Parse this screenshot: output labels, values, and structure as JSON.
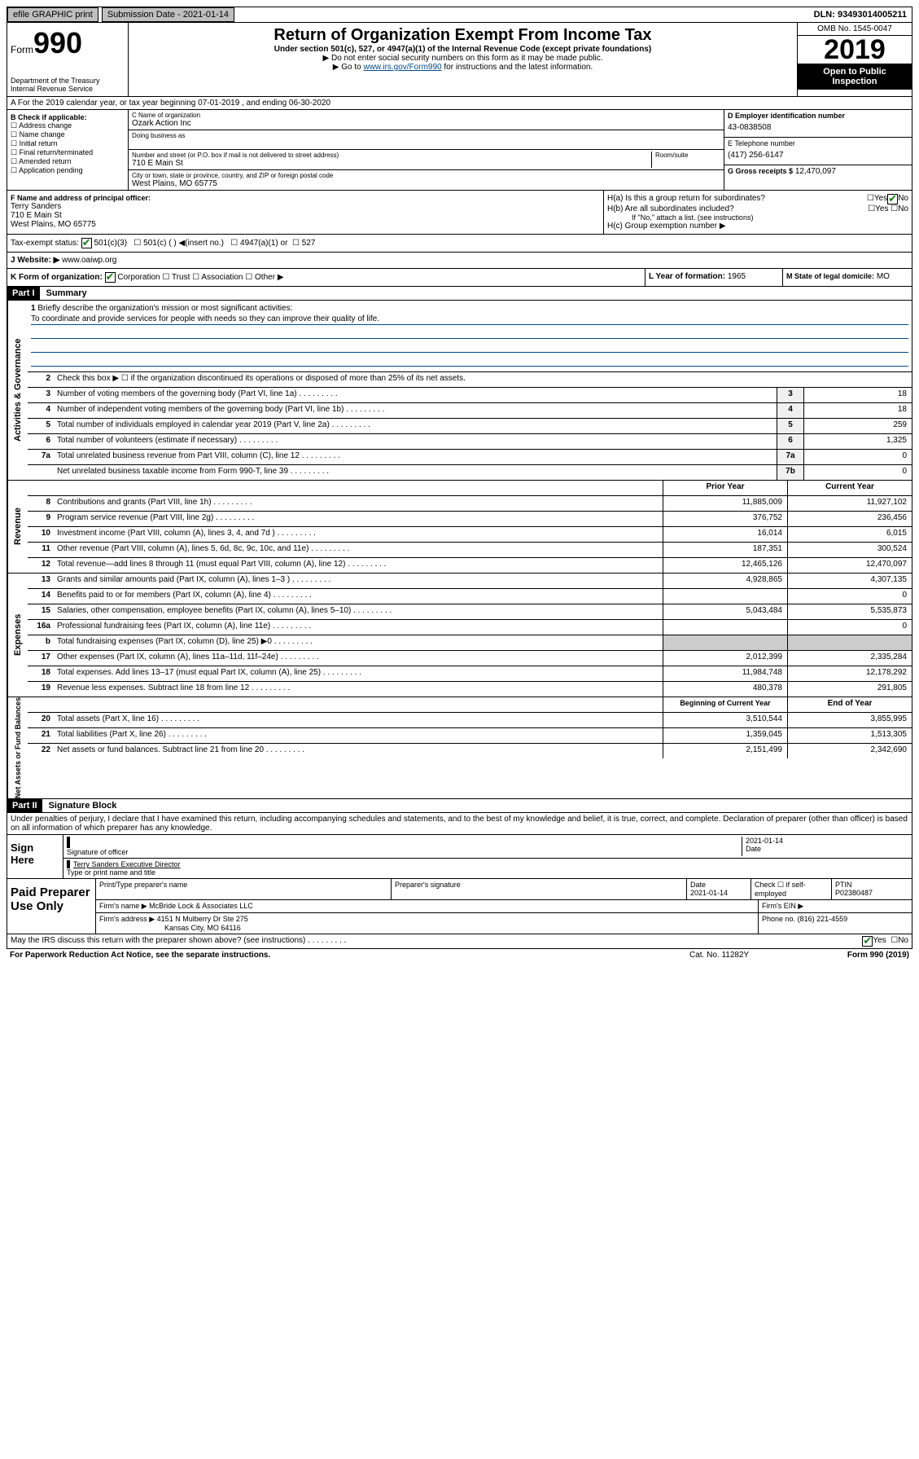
{
  "topbar": {
    "efile": "efile GRAPHIC print",
    "submission": "Submission Date - 2021-01-14",
    "dln": "DLN: 93493014005211"
  },
  "header": {
    "form_label": "Form",
    "form_num": "990",
    "dept": "Department of the Treasury\nInternal Revenue Service",
    "title": "Return of Organization Exempt From Income Tax",
    "sub1": "Under section 501(c), 527, or 4947(a)(1) of the Internal Revenue Code (except private foundations)",
    "sub2": "▶ Do not enter social security numbers on this form as it may be made public.",
    "sub3_pre": "▶ Go to ",
    "sub3_link": "www.irs.gov/Form990",
    "sub3_post": " for instructions and the latest information.",
    "omb": "OMB No. 1545-0047",
    "year": "2019",
    "open": "Open to Public Inspection"
  },
  "sectionA": "A For the 2019 calendar year, or tax year beginning 07-01-2019   , and ending 06-30-2020",
  "B": {
    "label": "B Check if applicable:",
    "items": [
      "Address change",
      "Name change",
      "Initial return",
      "Final return/terminated",
      "Amended return",
      "Application pending"
    ]
  },
  "C": {
    "name_label": "C Name of organization",
    "name": "Ozark Action Inc",
    "dba_label": "Doing business as",
    "addr_label": "Number and street (or P.O. box if mail is not delivered to street address)",
    "room_label": "Room/suite",
    "addr": "710 E Main St",
    "city_label": "City or town, state or province, country, and ZIP or foreign postal code",
    "city": "West Plains, MO  65775"
  },
  "D": {
    "label": "D Employer identification number",
    "value": "43-0838508"
  },
  "E": {
    "label": "E Telephone number",
    "value": "(417) 256-6147"
  },
  "G": {
    "label": "G Gross receipts $",
    "value": "12,470,097"
  },
  "F": {
    "label": "F  Name and address of principal officer:",
    "name": "Terry Sanders",
    "addr1": "710 E Main St",
    "addr2": "West Plains, MO  65775"
  },
  "H": {
    "a": "H(a)  Is this a group return for subordinates?",
    "b": "H(b)  Are all subordinates included?",
    "b_note": "If \"No,\" attach a list. (see instructions)",
    "c": "H(c)  Group exemption number ▶"
  },
  "I": {
    "label": "Tax-exempt status:",
    "opts": [
      "501(c)(3)",
      "501(c) (  ) ◀(insert no.)",
      "4947(a)(1) or",
      "527"
    ]
  },
  "J": {
    "label": "J  Website: ▶",
    "value": "www.oaiwp.org"
  },
  "K": {
    "label": "K Form of organization:",
    "opts": [
      "Corporation",
      "Trust",
      "Association",
      "Other ▶"
    ]
  },
  "L": {
    "label": "L Year of formation:",
    "value": "1965"
  },
  "M": {
    "label": "M State of legal domicile:",
    "value": "MO"
  },
  "part1": {
    "hdr": "Part I",
    "title": "Summary",
    "l1": "Briefly describe the organization's mission or most significant activities:",
    "mission": "To coordinate and provide services for people with needs so they can improve their quality of life.",
    "l2": "Check this box ▶ ☐  if the organization discontinued its operations or disposed of more than 25% of its net assets.",
    "lines_gov": [
      {
        "n": "3",
        "t": "Number of voting members of the governing body (Part VI, line 1a)",
        "b": "3",
        "v": "18"
      },
      {
        "n": "4",
        "t": "Number of independent voting members of the governing body (Part VI, line 1b)",
        "b": "4",
        "v": "18"
      },
      {
        "n": "5",
        "t": "Total number of individuals employed in calendar year 2019 (Part V, line 2a)",
        "b": "5",
        "v": "259"
      },
      {
        "n": "6",
        "t": "Total number of volunteers (estimate if necessary)",
        "b": "6",
        "v": "1,325"
      },
      {
        "n": "7a",
        "t": "Total unrelated business revenue from Part VIII, column (C), line 12",
        "b": "7a",
        "v": "0"
      },
      {
        "n": "",
        "t": "Net unrelated business taxable income from Form 990-T, line 39",
        "b": "7b",
        "v": "0"
      }
    ],
    "col_prior": "Prior Year",
    "col_current": "Current Year",
    "lines_rev": [
      {
        "n": "8",
        "t": "Contributions and grants (Part VIII, line 1h)",
        "p": "11,885,009",
        "c": "11,927,102"
      },
      {
        "n": "9",
        "t": "Program service revenue (Part VIII, line 2g)",
        "p": "376,752",
        "c": "236,456"
      },
      {
        "n": "10",
        "t": "Investment income (Part VIII, column (A), lines 3, 4, and 7d )",
        "p": "16,014",
        "c": "6,015"
      },
      {
        "n": "11",
        "t": "Other revenue (Part VIII, column (A), lines 5, 6d, 8c, 9c, 10c, and 11e)",
        "p": "187,351",
        "c": "300,524"
      },
      {
        "n": "12",
        "t": "Total revenue—add lines 8 through 11 (must equal Part VIII, column (A), line 12)",
        "p": "12,465,126",
        "c": "12,470,097"
      }
    ],
    "lines_exp": [
      {
        "n": "13",
        "t": "Grants and similar amounts paid (Part IX, column (A), lines 1–3 )",
        "p": "4,928,865",
        "c": "4,307,135"
      },
      {
        "n": "14",
        "t": "Benefits paid to or for members (Part IX, column (A), line 4)",
        "p": "",
        "c": "0"
      },
      {
        "n": "15",
        "t": "Salaries, other compensation, employee benefits (Part IX, column (A), lines 5–10)",
        "p": "5,043,484",
        "c": "5,535,873"
      },
      {
        "n": "16a",
        "t": "Professional fundraising fees (Part IX, column (A), line 11e)",
        "p": "",
        "c": "0"
      },
      {
        "n": "b",
        "t": "Total fundraising expenses (Part IX, column (D), line 25) ▶0",
        "p": "",
        "c": "",
        "shaded": true
      },
      {
        "n": "17",
        "t": "Other expenses (Part IX, column (A), lines 11a–11d, 11f–24e)",
        "p": "2,012,399",
        "c": "2,335,284"
      },
      {
        "n": "18",
        "t": "Total expenses. Add lines 13–17 (must equal Part IX, column (A), line 25)",
        "p": "11,984,748",
        "c": "12,178,292"
      },
      {
        "n": "19",
        "t": "Revenue less expenses. Subtract line 18 from line 12",
        "p": "480,378",
        "c": "291,805"
      }
    ],
    "col_begin": "Beginning of Current Year",
    "col_end": "End of Year",
    "lines_net": [
      {
        "n": "20",
        "t": "Total assets (Part X, line 16)",
        "p": "3,510,544",
        "c": "3,855,995"
      },
      {
        "n": "21",
        "t": "Total liabilities (Part X, line 26)",
        "p": "1,359,045",
        "c": "1,513,305"
      },
      {
        "n": "22",
        "t": "Net assets or fund balances. Subtract line 21 from line 20",
        "p": "2,151,499",
        "c": "2,342,690"
      }
    ]
  },
  "part2": {
    "hdr": "Part II",
    "title": "Signature Block",
    "perjury": "Under penalties of perjury, I declare that I have examined this return, including accompanying schedules and statements, and to the best of my knowledge and belief, it is true, correct, and complete. Declaration of preparer (other than officer) is based on all information of which preparer has any knowledge.",
    "sign_here": "Sign Here",
    "sig_officer": "Signature of officer",
    "date": "2021-01-14",
    "date_label": "Date",
    "name_title": "Terry Sanders  Executive Director",
    "name_title_label": "Type or print name and title",
    "paid": "Paid Preparer Use Only",
    "prep_name_label": "Print/Type preparer's name",
    "prep_sig_label": "Preparer's signature",
    "prep_date": "2021-01-14",
    "prep_date_label": "Date",
    "self_emp": "Check ☐ if self-employed",
    "ptin_label": "PTIN",
    "ptin": "P02380487",
    "firm_name_label": "Firm's name    ▶",
    "firm_name": "McBride Lock & Associates LLC",
    "firm_ein_label": "Firm's EIN ▶",
    "firm_addr_label": "Firm's address ▶",
    "firm_addr": "4151 N Mulberry Dr Ste 275",
    "firm_city": "Kansas City, MO  64116",
    "phone_label": "Phone no.",
    "phone": "(816) 221-4559"
  },
  "footer": {
    "discuss": "May the IRS discuss this return with the preparer shown above? (see instructions)",
    "yes": "Yes",
    "no": "No",
    "paperwork": "For Paperwork Reduction Act Notice, see the separate instructions.",
    "cat": "Cat. No. 11282Y",
    "form": "Form 990 (2019)"
  },
  "side_labels": {
    "gov": "Activities & Governance",
    "rev": "Revenue",
    "exp": "Expenses",
    "net": "Net Assets or Fund Balances"
  }
}
